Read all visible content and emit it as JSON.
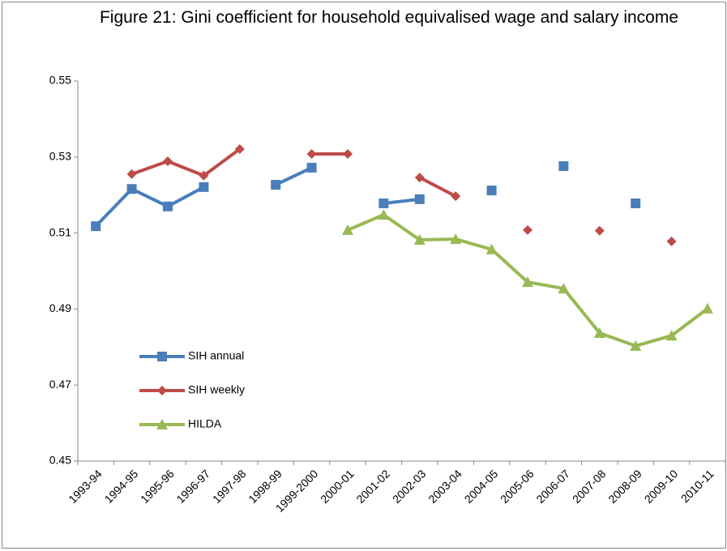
{
  "chart_data": {
    "type": "line",
    "title": "Figure 21: Gini coefficient for household equivalised wage and salary income",
    "categories": [
      "1993-94",
      "1994-95",
      "1995-96",
      "1996-97",
      "1997-98",
      "1998-99",
      "1999-2000",
      "2000-01",
      "2001-02",
      "2002-03",
      "2003-04",
      "2004-05",
      "2005-06",
      "2006-07",
      "2007-08",
      "2008-09",
      "2009-10",
      "2010-11"
    ],
    "series": [
      {
        "name": "SIH annual",
        "color": "#4a7ebb",
        "marker": "square",
        "values": [
          0.5118,
          0.5216,
          0.517,
          0.5221,
          null,
          0.5227,
          0.5272,
          null,
          0.5178,
          0.5189,
          null,
          0.5212,
          null,
          0.5276,
          null,
          0.5178,
          null,
          null
        ]
      },
      {
        "name": "SIH weekly",
        "color": "#be4b48",
        "marker": "diamond",
        "values": [
          null,
          0.5255,
          0.5289,
          0.5251,
          0.5321,
          null,
          0.5308,
          0.5308,
          null,
          0.5246,
          0.5197,
          null,
          0.5108,
          null,
          0.5106,
          null,
          0.5078,
          null
        ]
      },
      {
        "name": "HILDA",
        "color": "#98b954",
        "marker": "triangle",
        "values": [
          null,
          null,
          null,
          null,
          null,
          null,
          null,
          0.5108,
          0.5148,
          0.5082,
          0.5084,
          0.5057,
          0.4971,
          0.4954,
          0.4837,
          0.4803,
          0.483,
          0.4901
        ]
      }
    ],
    "ylim": [
      0.45,
      0.55
    ],
    "yticks": [
      0.45,
      0.47,
      0.49,
      0.51,
      0.53,
      0.55
    ],
    "grid": false
  }
}
